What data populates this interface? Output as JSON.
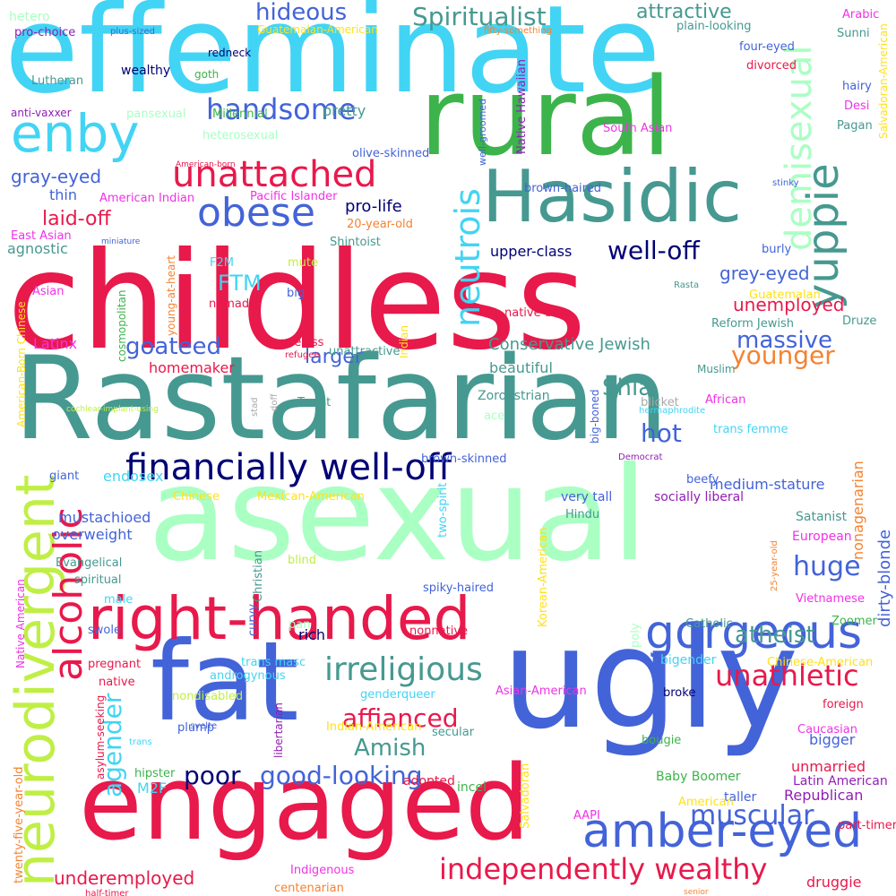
{
  "palette": {
    "crimson": "#e8194b",
    "green": "#3cb44b",
    "royal_blue": "#4363d8",
    "cyan": "#42d4f4",
    "mint": "#aaffc3",
    "lime": "#bfef45",
    "teal": "#469990",
    "navy": "#000075",
    "magenta": "#f032e6",
    "purple": "#911eb4",
    "orange": "#f58231",
    "yellow": "#ffe119",
    "gray": "#a9a9a9"
  },
  "words": [
    {
      "text": "effeminate",
      "color": "#42d4f4"
    },
    {
      "text": "rural",
      "color": "#3cb44b"
    },
    {
      "text": "childless",
      "color": "#e8194b"
    },
    {
      "text": "Rastafarian",
      "color": "#469990"
    },
    {
      "text": "asexual",
      "color": "#aaffc3"
    },
    {
      "text": "engaged",
      "color": "#e8194b"
    },
    {
      "text": "ugly",
      "color": "#4363d8"
    },
    {
      "text": "fat",
      "color": "#4363d8"
    },
    {
      "text": "Hasidic",
      "color": "#469990"
    },
    {
      "text": "right-handed",
      "color": "#e8194b"
    },
    {
      "text": "financially well-off",
      "color": "#000075"
    },
    {
      "text": "enby",
      "color": "#42d4f4"
    },
    {
      "text": "neurodivergent",
      "color": "#bfef45"
    },
    {
      "text": "gorgeous",
      "color": "#4363d8"
    },
    {
      "text": "amber-eyed",
      "color": "#4363d8"
    },
    {
      "text": "obese",
      "color": "#4363d8"
    },
    {
      "text": "unattached",
      "color": "#e8194b"
    },
    {
      "text": "handsome",
      "color": "#4363d8"
    },
    {
      "text": "yuppie",
      "color": "#469990"
    },
    {
      "text": "demisexual",
      "color": "#aaffc3"
    },
    {
      "text": "neutrois",
      "color": "#42d4f4"
    },
    {
      "text": "irreligious",
      "color": "#469990"
    },
    {
      "text": "alcoholic",
      "color": "#e8194b"
    },
    {
      "text": "independently wealthy",
      "color": "#e8194b"
    },
    {
      "text": "good-looking",
      "color": "#4363d8"
    },
    {
      "text": "affianced",
      "color": "#e8194b"
    },
    {
      "text": "unathletic",
      "color": "#e8194b"
    },
    {
      "text": "Amish",
      "color": "#469990"
    },
    {
      "text": "muscular",
      "color": "#4363d8"
    },
    {
      "text": "agender",
      "color": "#42d4f4"
    },
    {
      "text": "atheist",
      "color": "#469990"
    },
    {
      "text": "huge",
      "color": "#4363d8"
    },
    {
      "text": "hot",
      "color": "#4363d8"
    },
    {
      "text": "Shia",
      "color": "#469990"
    },
    {
      "text": "massive",
      "color": "#4363d8"
    },
    {
      "text": "goateed",
      "color": "#4363d8"
    },
    {
      "text": "hideous",
      "color": "#4363d8"
    },
    {
      "text": "Spiritualist",
      "color": "#469990"
    },
    {
      "text": "attractive",
      "color": "#469990"
    },
    {
      "text": "well-off",
      "color": "#000075"
    },
    {
      "text": "larger",
      "color": "#4363d8"
    },
    {
      "text": "poor",
      "color": "#000075"
    },
    {
      "text": "laid-off",
      "color": "#e8194b"
    },
    {
      "text": "FTM",
      "color": "#42d4f4"
    },
    {
      "text": "underemployed",
      "color": "#e8194b"
    },
    {
      "text": "unemployed",
      "color": "#e8194b"
    },
    {
      "text": "younger",
      "color": "#f58231"
    },
    {
      "text": "grey-eyed",
      "color": "#4363d8"
    },
    {
      "text": "gray-eyed",
      "color": "#4363d8"
    },
    {
      "text": "dirty-blonde",
      "color": "#4363d8"
    },
    {
      "text": "nonagenarian",
      "color": "#f58231"
    },
    {
      "text": "Conservative Jewish",
      "color": "#469990"
    },
    {
      "text": "pro-life",
      "color": "#000075"
    },
    {
      "text": "upper-class",
      "color": "#000075"
    },
    {
      "text": "homemaker",
      "color": "#e8194b"
    },
    {
      "text": "beautiful",
      "color": "#469990"
    },
    {
      "text": "medium-stature",
      "color": "#4363d8"
    },
    {
      "text": "rich",
      "color": "#000075"
    },
    {
      "text": "bigger",
      "color": "#4363d8"
    },
    {
      "text": "unmarried",
      "color": "#e8194b"
    },
    {
      "text": "Republican",
      "color": "#911eb4"
    },
    {
      "text": "pretty",
      "color": "#469990"
    },
    {
      "text": "M2F",
      "color": "#42d4f4"
    },
    {
      "text": "Latinx",
      "color": "#f032e6"
    },
    {
      "text": "endosex",
      "color": "#42d4f4"
    },
    {
      "text": "mustachioed",
      "color": "#4363d8"
    },
    {
      "text": "overweight",
      "color": "#4363d8"
    },
    {
      "text": "adopted",
      "color": "#e8194b"
    },
    {
      "text": "bigender",
      "color": "#42d4f4"
    },
    {
      "text": "thin",
      "color": "#4363d8"
    },
    {
      "text": "agnostic",
      "color": "#469990"
    },
    {
      "text": "Baby Boomer",
      "color": "#3cb44b"
    },
    {
      "text": "incel",
      "color": "#3cb44b"
    },
    {
      "text": "taller",
      "color": "#4363d8"
    },
    {
      "text": "druggie",
      "color": "#e8194b"
    },
    {
      "text": "Latin American",
      "color": "#911eb4"
    },
    {
      "text": "Zoroastrian",
      "color": "#469990"
    },
    {
      "text": "Muslim",
      "color": "#469990"
    },
    {
      "text": "very tall",
      "color": "#4363d8"
    },
    {
      "text": "socially liberal",
      "color": "#911eb4"
    },
    {
      "text": "Satanist",
      "color": "#469990"
    },
    {
      "text": "European",
      "color": "#f032e6"
    },
    {
      "text": "wealthy",
      "color": "#000075"
    },
    {
      "text": "goth",
      "color": "#3cb44b"
    },
    {
      "text": "hetero",
      "color": "#aaffc3"
    },
    {
      "text": "pro-choice",
      "color": "#911eb4"
    },
    {
      "text": "redneck",
      "color": "#000075"
    },
    {
      "text": "plus-sized",
      "color": "#4363d8"
    },
    {
      "text": "Guatemalan-American",
      "color": "#ffe119"
    },
    {
      "text": "fifty-something",
      "color": "#f58231"
    },
    {
      "text": "plain-looking",
      "color": "#469990"
    },
    {
      "text": "four-eyed",
      "color": "#4363d8"
    },
    {
      "text": "Arabic",
      "color": "#f032e6"
    },
    {
      "text": "Sunni",
      "color": "#469990"
    },
    {
      "text": "divorced",
      "color": "#e8194b"
    },
    {
      "text": "hairy",
      "color": "#4363d8"
    },
    {
      "text": "Desi",
      "color": "#f032e6"
    },
    {
      "text": "Pagan",
      "color": "#469990"
    },
    {
      "text": "Salvadoran-American",
      "color": "#ffe119"
    },
    {
      "text": "Lutheran",
      "color": "#469990"
    },
    {
      "text": "anti-vaxxer",
      "color": "#911eb4"
    },
    {
      "text": "pansexual",
      "color": "#aaffc3"
    },
    {
      "text": "Millennial",
      "color": "#3cb44b"
    },
    {
      "text": "heterosexual",
      "color": "#aaffc3"
    },
    {
      "text": "olive-skinned",
      "color": "#4363d8"
    },
    {
      "text": "well-groomed",
      "color": "#4363d8"
    },
    {
      "text": "Native Hawaiian",
      "color": "#911eb4"
    },
    {
      "text": "South Asian",
      "color": "#f032e6"
    },
    {
      "text": "American-born",
      "color": "#e8194b"
    },
    {
      "text": "American Indian",
      "color": "#f032e6"
    },
    {
      "text": "Pacific Islander",
      "color": "#f032e6"
    },
    {
      "text": "brown-haired",
      "color": "#4363d8"
    },
    {
      "text": "stinky",
      "color": "#4363d8"
    },
    {
      "text": "East Asian",
      "color": "#f032e6"
    },
    {
      "text": "miniature",
      "color": "#4363d8"
    },
    {
      "text": "20-year-old",
      "color": "#f58231"
    },
    {
      "text": "Shintoist",
      "color": "#469990"
    },
    {
      "text": "burly",
      "color": "#4363d8"
    },
    {
      "text": "F2M",
      "color": "#42d4f4"
    },
    {
      "text": "mute",
      "color": "#bfef45"
    },
    {
      "text": "Asian",
      "color": "#f032e6"
    },
    {
      "text": "big",
      "color": "#4363d8"
    },
    {
      "text": "young-at-heart",
      "color": "#f58231"
    },
    {
      "text": "Rasta",
      "color": "#469990"
    },
    {
      "text": "Guatemalan",
      "color": "#ffe119"
    },
    {
      "text": "nomadic",
      "color": "#e8194b"
    },
    {
      "text": "native-born",
      "color": "#e8194b"
    },
    {
      "text": "Druze",
      "color": "#469990"
    },
    {
      "text": "Reform Jewish",
      "color": "#469990"
    },
    {
      "text": "American-Born Chinese",
      "color": "#ffe119"
    },
    {
      "text": "cosmopolitan",
      "color": "#3cb44b"
    },
    {
      "text": "houseless",
      "color": "#e8194b"
    },
    {
      "text": "unattractive",
      "color": "#469990"
    },
    {
      "text": "refugee",
      "color": "#e8194b"
    },
    {
      "text": "Indian",
      "color": "#ffe119"
    },
    {
      "text": "Vietnamese-American",
      "color": "#ffe119"
    },
    {
      "text": "Taoist",
      "color": "#469990"
    },
    {
      "text": "stad",
      "color": "#a9a9a9"
    },
    {
      "text": "doff",
      "color": "#a9a9a9"
    },
    {
      "text": "ace",
      "color": "#aaffc3"
    },
    {
      "text": "blicket",
      "color": "#a9a9a9"
    },
    {
      "text": "African",
      "color": "#f032e6"
    },
    {
      "text": "trans femme",
      "color": "#42d4f4"
    },
    {
      "text": "hermaphrodite",
      "color": "#42d4f4"
    },
    {
      "text": "cochlear-implant-using",
      "color": "#bfef45"
    },
    {
      "text": "big-boned",
      "color": "#4363d8"
    },
    {
      "text": "brown-skinned",
      "color": "#4363d8"
    },
    {
      "text": "Democrat",
      "color": "#911eb4"
    },
    {
      "text": "giant",
      "color": "#4363d8"
    },
    {
      "text": "Chinese",
      "color": "#ffe119"
    },
    {
      "text": "Mexican-American",
      "color": "#ffe119"
    },
    {
      "text": "beefy",
      "color": "#4363d8"
    },
    {
      "text": "Hindu",
      "color": "#469990"
    },
    {
      "text": "two-spirit",
      "color": "#42d4f4"
    },
    {
      "text": "25-year-old",
      "color": "#f58231"
    },
    {
      "text": "Evangelical",
      "color": "#469990"
    },
    {
      "text": "blind",
      "color": "#bfef45"
    },
    {
      "text": "Christian",
      "color": "#469990"
    },
    {
      "text": "spiky-haired",
      "color": "#4363d8"
    },
    {
      "text": "Vietnamese",
      "color": "#f032e6"
    },
    {
      "text": "spiritual",
      "color": "#469990"
    },
    {
      "text": "Native American",
      "color": "#f032e6"
    },
    {
      "text": "male",
      "color": "#42d4f4"
    },
    {
      "text": "curvy",
      "color": "#4363d8"
    },
    {
      "text": "Korean-American",
      "color": "#ffe119"
    },
    {
      "text": "Catholic",
      "color": "#469990"
    },
    {
      "text": "Zoomer",
      "color": "#3cb44b"
    },
    {
      "text": "swole",
      "color": "#4363d8"
    },
    {
      "text": "pan",
      "color": "#aaffc3"
    },
    {
      "text": "poly",
      "color": "#aaffc3"
    },
    {
      "text": "nonnative",
      "color": "#e8194b"
    },
    {
      "text": "pregnant",
      "color": "#e8194b"
    },
    {
      "text": "native",
      "color": "#e8194b"
    },
    {
      "text": "trans masc",
      "color": "#42d4f4"
    },
    {
      "text": "androgynous",
      "color": "#42d4f4"
    },
    {
      "text": "Chinese-American",
      "color": "#ffe119"
    },
    {
      "text": "nondisabled",
      "color": "#bfef45"
    },
    {
      "text": "genderqueer",
      "color": "#42d4f4"
    },
    {
      "text": "Asian-American",
      "color": "#f032e6"
    },
    {
      "text": "broke",
      "color": "#000075"
    },
    {
      "text": "foreign",
      "color": "#e8194b"
    },
    {
      "text": "twenty-five-year-old",
      "color": "#f58231"
    },
    {
      "text": "asylum-seeking",
      "color": "#e8194b"
    },
    {
      "text": "svelte",
      "color": "#4363d8"
    },
    {
      "text": "trans",
      "color": "#42d4f4"
    },
    {
      "text": "plump",
      "color": "#4363d8"
    },
    {
      "text": "Indian-American",
      "color": "#ffe119"
    },
    {
      "text": "libertarian",
      "color": "#911eb4"
    },
    {
      "text": "secular",
      "color": "#469990"
    },
    {
      "text": "Caucasian",
      "color": "#f032e6"
    },
    {
      "text": "bougie",
      "color": "#3cb44b"
    },
    {
      "text": "hipster",
      "color": "#3cb44b"
    },
    {
      "text": "Salvadoran",
      "color": "#ffe119"
    },
    {
      "text": "American",
      "color": "#ffe119"
    },
    {
      "text": "part-timer",
      "color": "#e8194b"
    },
    {
      "text": "AAPI",
      "color": "#f032e6"
    },
    {
      "text": "Indigenous",
      "color": "#f032e6"
    },
    {
      "text": "centenarian",
      "color": "#f58231"
    },
    {
      "text": "half-timer",
      "color": "#e8194b"
    },
    {
      "text": "senior",
      "color": "#f58231"
    }
  ]
}
